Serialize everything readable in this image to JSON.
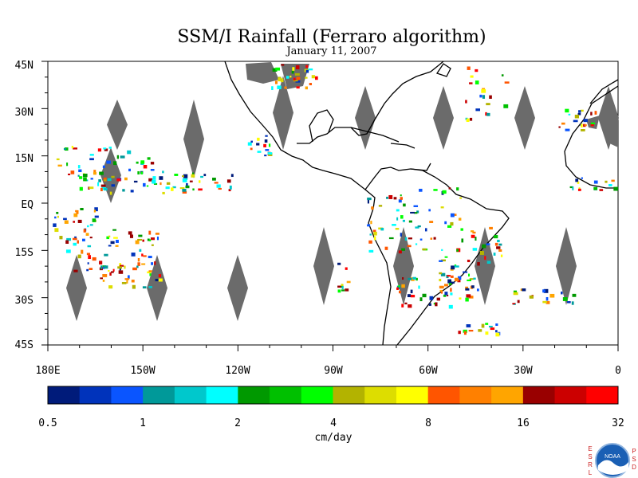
{
  "title": "SSM/I Rainfall (Ferraro algorithm)",
  "date": "January 11, 2007",
  "map": {
    "lat_labels": [
      "45N",
      "30N",
      "15N",
      "EQ",
      "15S",
      "30S",
      "45S"
    ],
    "lon_labels": [
      "180E",
      "150W",
      "120W",
      "90W",
      "60W",
      "30W",
      "0"
    ],
    "lat_range": [
      -45,
      45
    ],
    "lon_range": [
      -180,
      0
    ],
    "missing_swath_color": "#6b6b6b",
    "coastline_color": "#000000"
  },
  "colorbar": {
    "unit": "cm/day",
    "tick_labels": [
      "0.5",
      "1",
      "2",
      "4",
      "8",
      "16",
      "32"
    ],
    "colors": [
      "#001b7a",
      "#0033bb",
      "#0a55ff",
      "#009999",
      "#00c8cc",
      "#00ffff",
      "#009900",
      "#00c000",
      "#00ff00",
      "#b3b300",
      "#dddd00",
      "#ffff00",
      "#ff5500",
      "#ff8000",
      "#ffa500",
      "#990000",
      "#cc0000",
      "#ff0000"
    ]
  },
  "logo": {
    "left_letters": [
      "E",
      "S",
      "R",
      "L"
    ],
    "right_letters": [
      "P",
      "S",
      "D"
    ],
    "badge": "NOAA"
  }
}
